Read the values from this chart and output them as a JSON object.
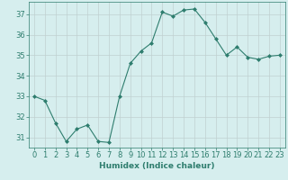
{
  "x": [
    0,
    1,
    2,
    3,
    4,
    5,
    6,
    7,
    8,
    9,
    10,
    11,
    12,
    13,
    14,
    15,
    16,
    17,
    18,
    19,
    20,
    21,
    22,
    23
  ],
  "y": [
    33.0,
    32.8,
    31.7,
    30.8,
    31.4,
    31.6,
    30.8,
    30.75,
    33.0,
    34.6,
    35.2,
    35.6,
    37.1,
    36.9,
    37.2,
    37.25,
    36.6,
    35.8,
    35.0,
    35.4,
    34.9,
    34.8,
    34.95,
    35.0
  ],
  "xlabel": "Humidex (Indice chaleur)",
  "ylim": [
    30.5,
    37.6
  ],
  "yticks": [
    31,
    32,
    33,
    34,
    35,
    36,
    37
  ],
  "xticks": [
    0,
    1,
    2,
    3,
    4,
    5,
    6,
    7,
    8,
    9,
    10,
    11,
    12,
    13,
    14,
    15,
    16,
    17,
    18,
    19,
    20,
    21,
    22,
    23
  ],
  "line_color": "#2e7d6e",
  "marker": "D",
  "marker_size": 2.0,
  "bg_color": "#d6eeee",
  "grid_color": "#c0d0d0",
  "text_color": "#2e7d6e",
  "label_fontsize": 6.5,
  "tick_fontsize": 6
}
